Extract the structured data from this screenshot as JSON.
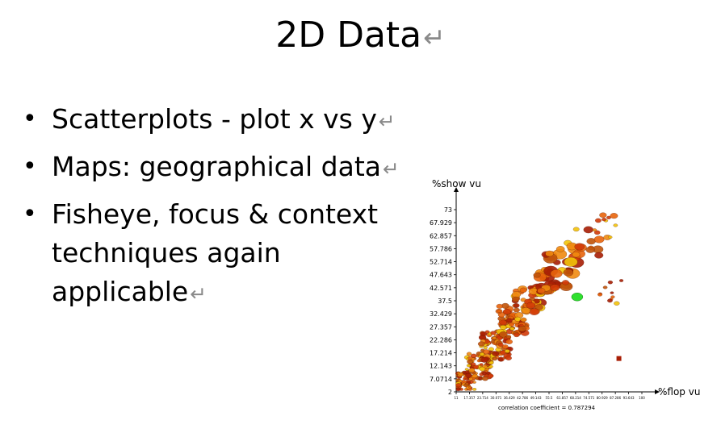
{
  "slide": {
    "title": "2D Data",
    "bullets": [
      {
        "lines": [
          "Scatterplots - plot x vs y"
        ]
      },
      {
        "lines": [
          "Maps: geographical data"
        ]
      },
      {
        "lines": [
          "Fisheye, focus & context",
          "techniques again",
          "applicable"
        ]
      }
    ],
    "return_mark": "↵",
    "bullet_glyph": "•"
  },
  "chart_data": {
    "type": "scatter",
    "title": "",
    "xlabel": "%flop vu",
    "ylabel": "%show vu",
    "y_ticks": [
      "2",
      "7.0714",
      "12.143",
      "17.214",
      "22.286",
      "27.357",
      "32.429",
      "37.5",
      "42.571",
      "47.643",
      "52.714",
      "57.786",
      "62.857",
      "67.929",
      "73"
    ],
    "x_ticks": [
      "11",
      "17.357",
      "23.714",
      "30.071",
      "36.429",
      "42.786",
      "49.143",
      "55.5",
      "61.857",
      "68.214",
      "74.571",
      "80.929",
      "87.286",
      "93.643",
      "100"
    ],
    "xlim": [
      11,
      100
    ],
    "ylim": [
      2,
      73
    ],
    "caption": "correlation coefficient = 0.787294",
    "colors": {
      "primary": "#e8640c",
      "dark": "#a81e05",
      "light": "#f2c40a",
      "highlight": "#2fe02f"
    }
  }
}
